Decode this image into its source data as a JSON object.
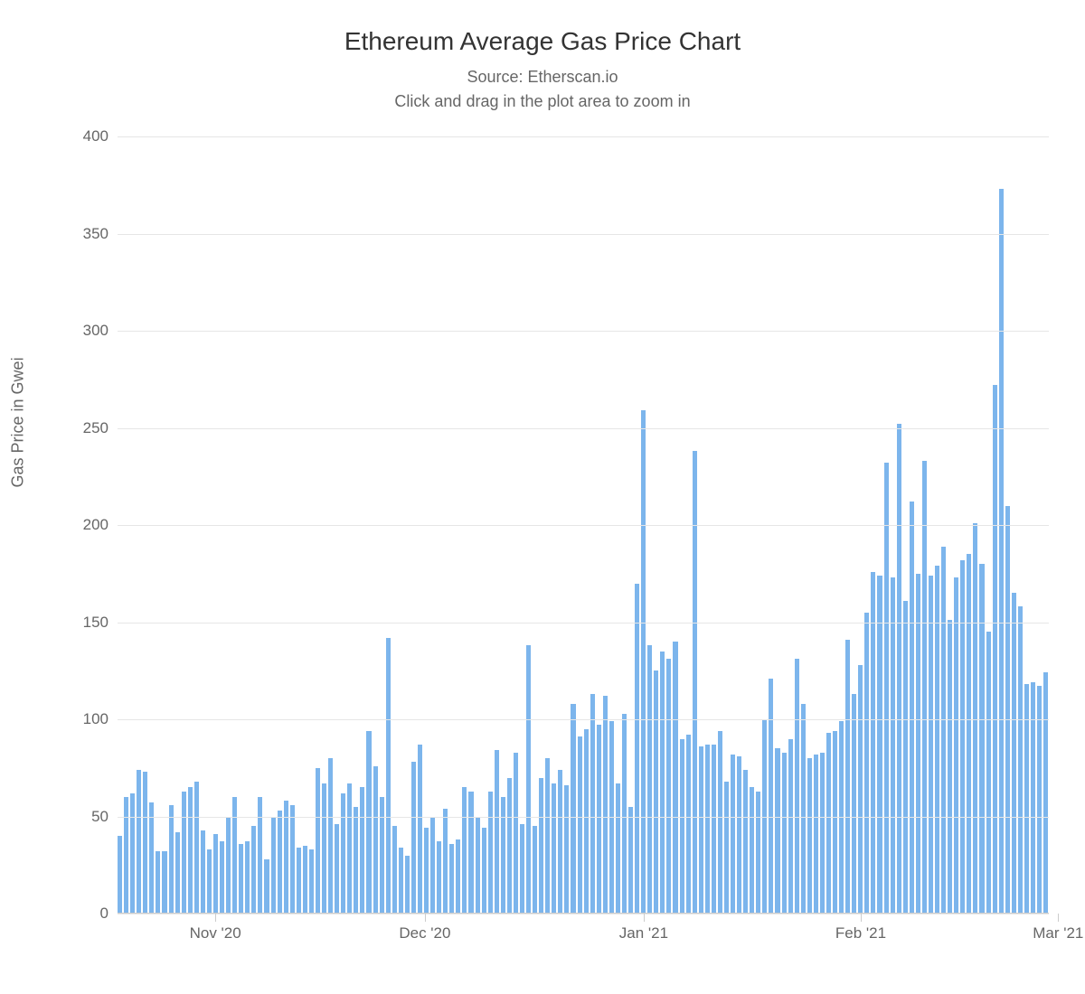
{
  "chart": {
    "type": "bar",
    "title": "Ethereum Average Gas Price Chart",
    "subtitle_line1": "Source: Etherscan.io",
    "subtitle_line2": "Click and drag in the plot area to zoom in",
    "y_axis_label": "Gas Price in Gwei",
    "title_fontsize": 28,
    "subtitle_fontsize": 18,
    "axis_label_fontsize": 18,
    "tick_label_fontsize": 17,
    "title_color": "#333333",
    "subtitle_color": "#666666",
    "label_color": "#666666",
    "background_color": "#ffffff",
    "grid_color": "#e6e6e6",
    "baseline_color": "#cccccc",
    "bar_color": "#7cb5ec",
    "ylim": [
      0,
      400
    ],
    "ytick_step": 50,
    "yticks": [
      0,
      50,
      100,
      150,
      200,
      250,
      300,
      350,
      400
    ],
    "xticks": [
      {
        "label": "Nov '20",
        "position_pct": 10.5
      },
      {
        "label": "Dec '20",
        "position_pct": 33.0
      },
      {
        "label": "Jan '21",
        "position_pct": 56.5
      },
      {
        "label": "Feb '21",
        "position_pct": 79.8
      },
      {
        "label": "Mar '21",
        "position_pct": 101.0
      }
    ],
    "values": [
      40,
      60,
      62,
      74,
      73,
      57,
      32,
      32,
      56,
      42,
      63,
      65,
      68,
      43,
      33,
      41,
      37,
      50,
      60,
      36,
      37,
      45,
      60,
      28,
      50,
      53,
      58,
      56,
      34,
      35,
      33,
      75,
      67,
      80,
      46,
      62,
      67,
      55,
      65,
      94,
      76,
      60,
      142,
      45,
      34,
      30,
      78,
      87,
      44,
      50,
      37,
      54,
      36,
      38,
      65,
      63,
      50,
      44,
      63,
      84,
      60,
      70,
      83,
      46,
      138,
      45,
      70,
      80,
      67,
      74,
      66,
      108,
      91,
      95,
      113,
      97,
      112,
      99,
      67,
      103,
      55,
      170,
      259,
      138,
      125,
      135,
      131,
      140,
      90,
      92,
      238,
      86,
      87,
      87,
      94,
      68,
      82,
      81,
      74,
      65,
      63,
      100,
      121,
      85,
      83,
      90,
      131,
      108,
      80,
      82,
      83,
      93,
      94,
      99,
      141,
      113,
      128,
      155,
      176,
      174,
      232,
      173,
      252,
      161,
      212,
      175,
      233,
      174,
      179,
      189,
      151,
      173,
      182,
      185,
      201,
      180,
      145,
      272,
      373,
      210,
      165,
      158,
      118,
      119,
      117,
      124
    ]
  }
}
